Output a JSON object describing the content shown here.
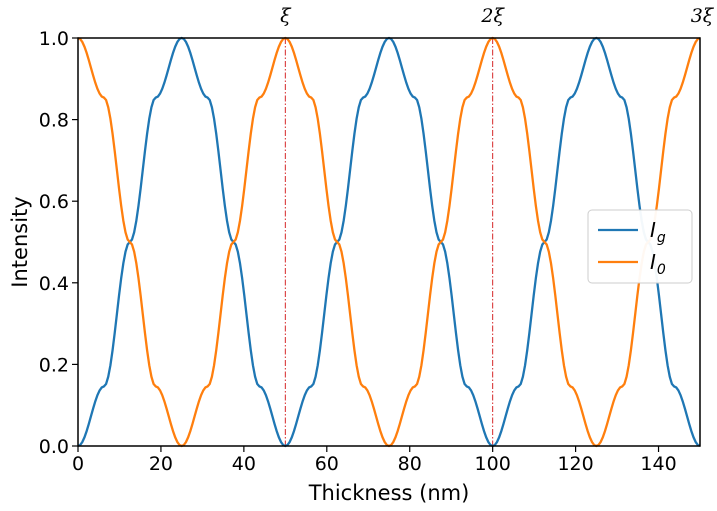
{
  "chart_data": {
    "type": "line",
    "xlabel": "Thickness (nm)",
    "ylabel": "Intensity",
    "xlim": [
      0,
      150
    ],
    "ylim": [
      0.0,
      1.0
    ],
    "x_ticks": [
      0,
      20,
      40,
      60,
      80,
      100,
      120,
      140
    ],
    "x_tick_labels": [
      "0",
      "20",
      "40",
      "60",
      "80",
      "100",
      "120",
      "140"
    ],
    "y_ticks": [
      0.0,
      0.2,
      0.4,
      0.6,
      0.8,
      1.0
    ],
    "y_tick_labels": [
      "0.0",
      "0.2",
      "0.4",
      "0.6",
      "0.8",
      "1.0"
    ],
    "grid": false,
    "legend_position": "center-right",
    "x": [
      0,
      6.25,
      12.5,
      18.75,
      25,
      31.25,
      37.5,
      43.75,
      50,
      56.25,
      62.5,
      68.75,
      75,
      81.25,
      87.5,
      93.75,
      100,
      106.25,
      112.5,
      118.75,
      125,
      131.25,
      137.5,
      143.75,
      150
    ],
    "series": [
      {
        "name": "I_g",
        "color": "#1f77b4",
        "values": [
          0.0,
          0.146,
          0.5,
          0.854,
          1.0,
          0.854,
          0.5,
          0.146,
          0.0,
          0.146,
          0.5,
          0.854,
          1.0,
          0.854,
          0.5,
          0.146,
          0.0,
          0.146,
          0.5,
          0.854,
          1.0,
          0.854,
          0.5,
          0.146,
          0.0
        ]
      },
      {
        "name": "I_0",
        "color": "#ff7f0e",
        "values": [
          1.0,
          0.854,
          0.5,
          0.146,
          0.0,
          0.146,
          0.5,
          0.854,
          1.0,
          0.854,
          0.5,
          0.146,
          0.0,
          0.146,
          0.5,
          0.854,
          1.0,
          0.854,
          0.5,
          0.146,
          0.0,
          0.146,
          0.5,
          0.854,
          1.0
        ]
      }
    ],
    "vertical_markers": [
      {
        "x": 50,
        "label": "ξ",
        "color": "#d62728"
      },
      {
        "x": 100,
        "label": "2ξ",
        "color": "#d62728"
      },
      {
        "x": 150,
        "label": "3ξ",
        "color": "#d62728"
      }
    ],
    "legend": [
      {
        "main": "I",
        "sub": "g"
      },
      {
        "main": "I",
        "sub": "0"
      }
    ]
  }
}
